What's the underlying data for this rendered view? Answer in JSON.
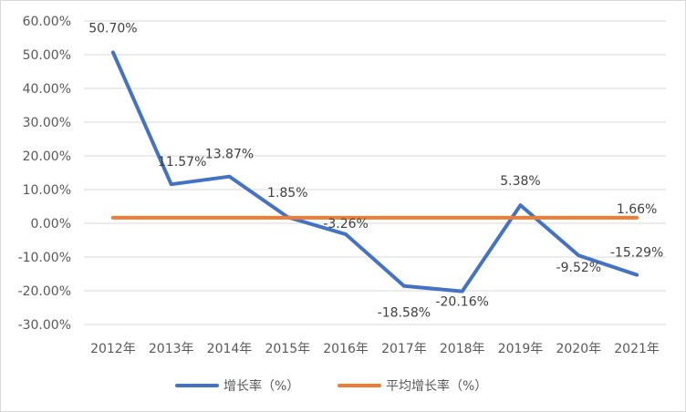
{
  "chart_data": {
    "type": "line",
    "categories": [
      "2012年",
      "2013年",
      "2014年",
      "2015年",
      "2016年",
      "2017年",
      "2018年",
      "2019年",
      "2020年",
      "2021年"
    ],
    "series": [
      {
        "name": "增长率（%）",
        "color": "#4472C4",
        "values": [
          50.7,
          11.57,
          13.87,
          1.85,
          -3.26,
          -18.58,
          -20.16,
          5.38,
          -9.52,
          -15.29
        ],
        "data_labels": [
          "50.70%",
          "11.57%",
          "13.87%",
          "1.85%",
          "-3.26%",
          "-18.58%",
          "-20.16%",
          "5.38%",
          "-9.52%",
          "-15.29%"
        ]
      },
      {
        "name": "平均增长率（%）",
        "color": "#ED7D31",
        "values": [
          1.66,
          1.66,
          1.66,
          1.66,
          1.66,
          1.66,
          1.66,
          1.66,
          1.66,
          1.66
        ],
        "data_labels": [
          "",
          "",
          "",
          "",
          "",
          "",
          "",
          "",
          "",
          "1.66%"
        ]
      }
    ],
    "ylim": [
      -30,
      60
    ],
    "yticks": [
      60,
      50,
      40,
      30,
      20,
      10,
      0,
      -10,
      -20,
      -30
    ],
    "ytick_labels": [
      "60.00%",
      "50.00%",
      "40.00%",
      "30.00%",
      "20.00%",
      "10.00%",
      "0.00%",
      "-10.00%",
      "-20.00%",
      "-30.00%"
    ],
    "grid": true,
    "legend": "bottom"
  }
}
